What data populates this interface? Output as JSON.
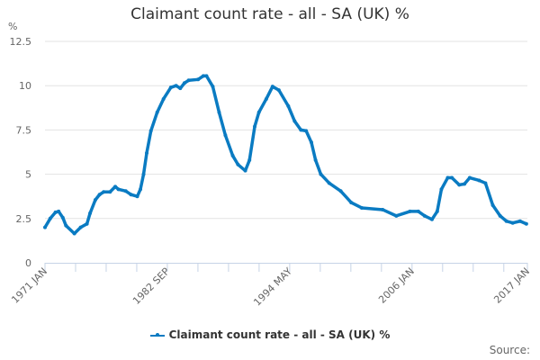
{
  "chart_data": {
    "type": "line",
    "title": "Claimant count rate - all - SA (UK) %",
    "ylabel": "%",
    "ylim": [
      0,
      12.5
    ],
    "yticks": [
      "0",
      "2.5",
      "5",
      "7.5",
      "10",
      "12.5"
    ],
    "xlim": [
      "1971 JAN",
      "2017 JAN"
    ],
    "xtick_labels": [
      "1971 JAN",
      "1982 SEP",
      "1994 MAY",
      "2006 JAN",
      "2017 JAN"
    ],
    "grid": "horizontal",
    "legend_position": "bottom",
    "color": "#0a7bc2",
    "series": [
      {
        "name": "Claimant count rate - all - SA (UK) %",
        "points": [
          [
            1971.0,
            2.0
          ],
          [
            1971.5,
            2.5
          ],
          [
            1972.0,
            2.85
          ],
          [
            1972.3,
            2.9
          ],
          [
            1972.7,
            2.55
          ],
          [
            1973.0,
            2.1
          ],
          [
            1973.8,
            1.65
          ],
          [
            1974.4,
            2.0
          ],
          [
            1975.0,
            2.2
          ],
          [
            1975.3,
            2.8
          ],
          [
            1975.8,
            3.55
          ],
          [
            1976.2,
            3.85
          ],
          [
            1976.6,
            4.0
          ],
          [
            1977.2,
            4.0
          ],
          [
            1977.7,
            4.3
          ],
          [
            1978.0,
            4.15
          ],
          [
            1978.7,
            4.05
          ],
          [
            1979.2,
            3.85
          ],
          [
            1979.8,
            3.75
          ],
          [
            1980.1,
            4.15
          ],
          [
            1980.4,
            5.0
          ],
          [
            1980.7,
            6.2
          ],
          [
            1981.1,
            7.45
          ],
          [
            1981.7,
            8.5
          ],
          [
            1982.3,
            9.25
          ],
          [
            1983.0,
            9.9
          ],
          [
            1983.5,
            10.0
          ],
          [
            1983.9,
            9.85
          ],
          [
            1984.3,
            10.15
          ],
          [
            1984.7,
            10.3
          ],
          [
            1985.6,
            10.35
          ],
          [
            1986.1,
            10.55
          ],
          [
            1986.4,
            10.55
          ],
          [
            1987.0,
            9.95
          ],
          [
            1987.6,
            8.5
          ],
          [
            1988.2,
            7.2
          ],
          [
            1988.9,
            6.05
          ],
          [
            1989.4,
            5.55
          ],
          [
            1990.1,
            5.2
          ],
          [
            1990.5,
            5.8
          ],
          [
            1991.0,
            7.7
          ],
          [
            1991.4,
            8.5
          ],
          [
            1992.1,
            9.25
          ],
          [
            1992.7,
            9.95
          ],
          [
            1993.3,
            9.75
          ],
          [
            1994.2,
            8.85
          ],
          [
            1994.8,
            8.0
          ],
          [
            1995.4,
            7.5
          ],
          [
            1995.9,
            7.45
          ],
          [
            1996.4,
            6.8
          ],
          [
            1996.8,
            5.8
          ],
          [
            1997.3,
            5.0
          ],
          [
            1998.1,
            4.5
          ],
          [
            1999.2,
            4.05
          ],
          [
            2000.2,
            3.4
          ],
          [
            2001.2,
            3.1
          ],
          [
            2003.2,
            3.0
          ],
          [
            2004.5,
            2.65
          ],
          [
            2005.8,
            2.9
          ],
          [
            2006.6,
            2.9
          ],
          [
            2007.2,
            2.65
          ],
          [
            2007.9,
            2.45
          ],
          [
            2008.4,
            2.9
          ],
          [
            2008.8,
            4.15
          ],
          [
            2009.4,
            4.8
          ],
          [
            2009.8,
            4.8
          ],
          [
            2010.5,
            4.4
          ],
          [
            2011.0,
            4.45
          ],
          [
            2011.5,
            4.8
          ],
          [
            2012.4,
            4.65
          ],
          [
            2013.0,
            4.5
          ],
          [
            2013.7,
            3.25
          ],
          [
            2014.4,
            2.65
          ],
          [
            2015.0,
            2.35
          ],
          [
            2015.6,
            2.25
          ],
          [
            2016.3,
            2.35
          ],
          [
            2016.9,
            2.2
          ]
        ]
      }
    ]
  },
  "source_label": "Source:"
}
